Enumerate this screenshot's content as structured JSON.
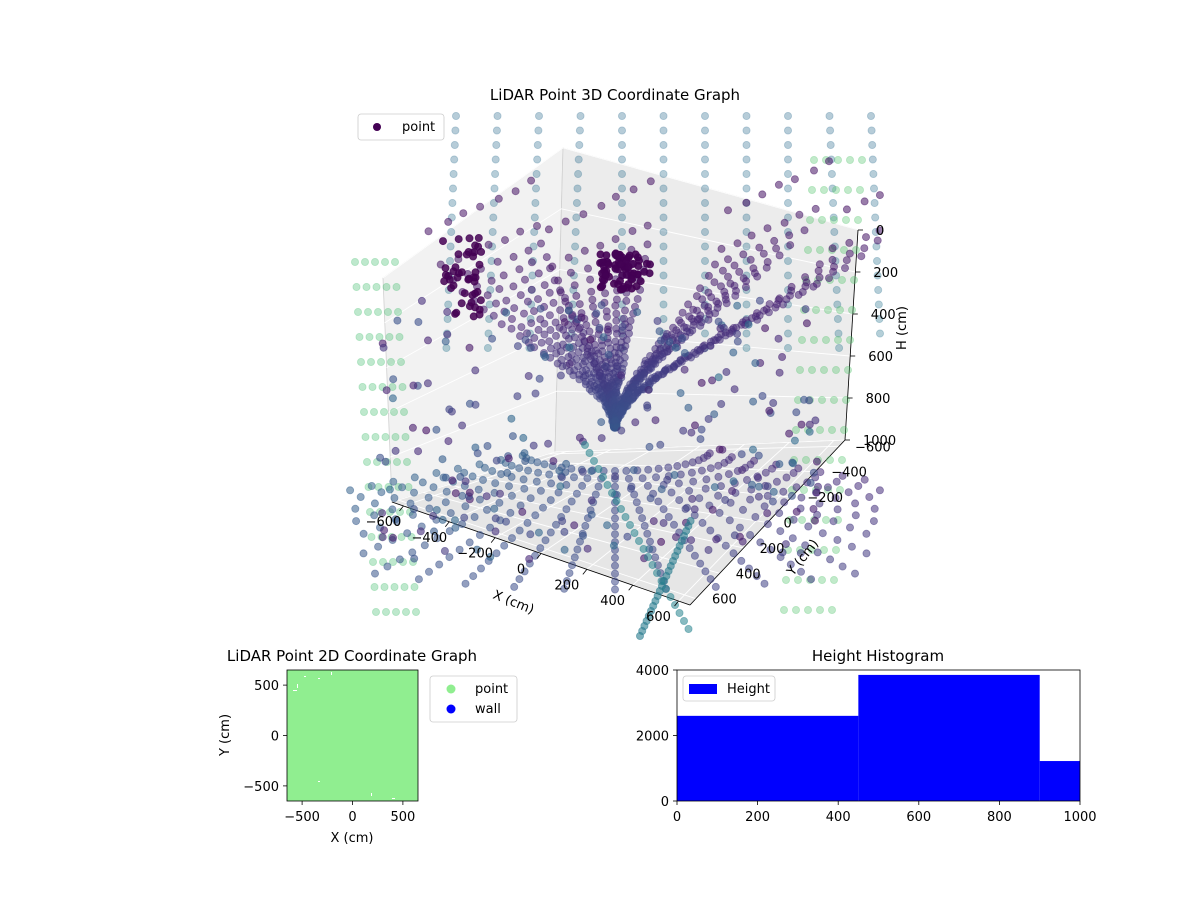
{
  "chart_data": [
    {
      "type": "scatter",
      "projection": "3d",
      "title": "LiDAR Point 3D Coordinate Graph",
      "xlabel": "X (cm)",
      "ylabel": "Y (cm)",
      "zlabel": "H (cm)",
      "xticks": [
        -600,
        -400,
        -200,
        0,
        200,
        400,
        600
      ],
      "yticks": [
        -600,
        -400,
        -200,
        0,
        200,
        400,
        600
      ],
      "zticks": [
        0,
        200,
        400,
        600,
        800,
        1000
      ],
      "zlim": [
        1000,
        0
      ],
      "grid": true,
      "legend": {
        "position": "top-left",
        "entries": [
          {
            "label": "point",
            "color": "#440154"
          }
        ]
      },
      "colormap": "viridis"
    },
    {
      "type": "scatter",
      "title": "LiDAR Point 2D Coordinate Graph",
      "xlabel": "X (cm)",
      "ylabel": "Y (cm)",
      "xticks": [
        -500,
        0,
        500
      ],
      "yticks": [
        -500,
        0,
        500
      ],
      "xlim": [
        -650,
        650
      ],
      "ylim": [
        -650,
        650
      ],
      "legend": {
        "position": "outside-right",
        "entries": [
          {
            "label": "point",
            "color": "#90ee90"
          },
          {
            "label": "wall",
            "color": "#0000ff"
          }
        ]
      }
    },
    {
      "type": "bar",
      "title": "Height Histogram",
      "bins": [
        [
          0,
          450
        ],
        [
          450,
          900
        ],
        [
          900,
          1000
        ]
      ],
      "values": [
        2600,
        3850,
        1220
      ],
      "color": "#0000ff",
      "xticks": [
        0,
        200,
        400,
        600,
        800,
        1000
      ],
      "yticks": [
        0,
        2000,
        4000
      ],
      "xlim": [
        0,
        1000
      ],
      "ylim": [
        0,
        4000
      ],
      "legend": {
        "position": "top-left",
        "entries": [
          {
            "label": "Height",
            "color": "#0000ff"
          }
        ]
      }
    }
  ]
}
